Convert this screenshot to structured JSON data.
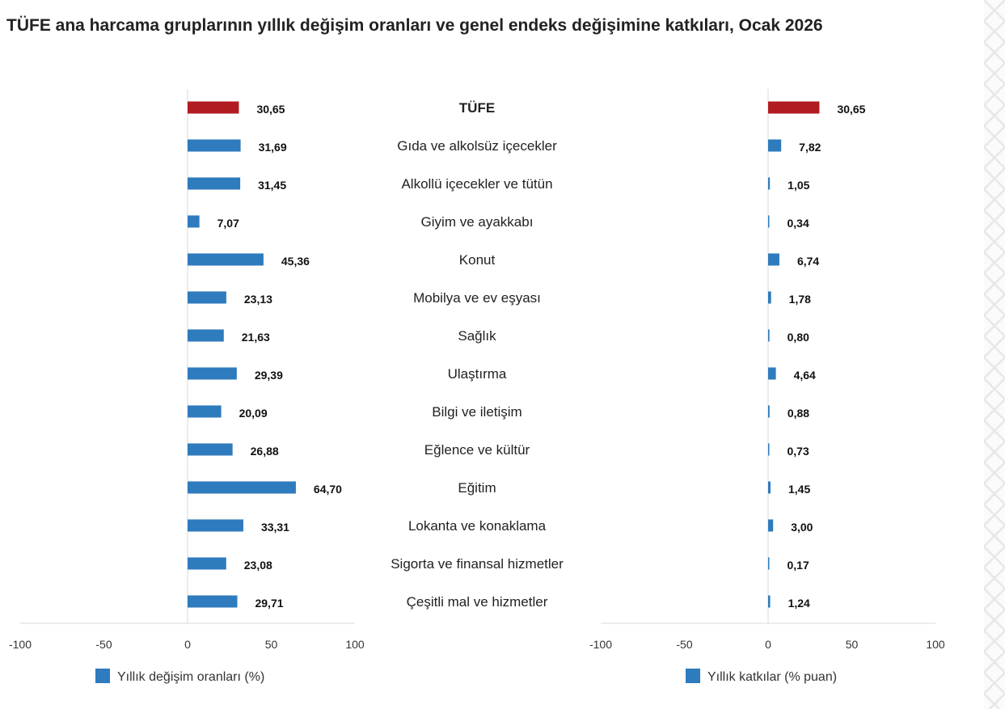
{
  "title": "TÜFE ana harcama gruplarının yıllık değişim oranları ve genel endeks değişimine katkıları, Ocak 2026",
  "chart_data": {
    "type": "bar",
    "orientation": "horizontal",
    "categories": [
      "TÜFE",
      "Gıda ve alkolsüz içecekler",
      "Alkollü içecekler ve tütün",
      "Giyim ve ayakkabı",
      "Konut",
      "Mobilya ve ev eşyası",
      "Sağlık",
      "Ulaştırma",
      "Bilgi ve iletişim",
      "Eğlence ve kültür",
      "Eğitim",
      "Lokanta ve konaklama",
      "Sigorta ve finansal hizmetler",
      "Çeşitli mal ve hizmetler"
    ],
    "highlight_category": "TÜFE",
    "colors": {
      "series": "#2e7bbd",
      "highlight": "#b01c22",
      "axis": "#d9d9d9"
    },
    "xlim": [
      -100,
      100
    ],
    "xticks": [
      -100,
      -50,
      0,
      50,
      100
    ],
    "series": [
      {
        "name": "Yıllık değişim oranları (%)",
        "values": [
          30.65,
          31.69,
          31.45,
          7.07,
          45.36,
          23.13,
          21.63,
          29.39,
          20.09,
          26.88,
          64.7,
          33.31,
          23.08,
          29.71
        ],
        "labels": [
          "30,65",
          "31,69",
          "31,45",
          "7,07",
          "45,36",
          "23,13",
          "21,63",
          "29,39",
          "20,09",
          "26,88",
          "64,70",
          "33,31",
          "23,08",
          "29,71"
        ]
      },
      {
        "name": "Yıllık katkılar (% puan)",
        "values": [
          30.65,
          7.82,
          1.05,
          0.34,
          6.74,
          1.78,
          0.8,
          4.64,
          0.88,
          0.73,
          1.45,
          3.0,
          0.17,
          1.24
        ],
        "labels": [
          "30,65",
          "7,82",
          "1,05",
          "0,34",
          "6,74",
          "1,78",
          "0,80",
          "4,64",
          "0,88",
          "0,73",
          "1,45",
          "3,00",
          "0,17",
          "1,24"
        ]
      }
    ]
  }
}
